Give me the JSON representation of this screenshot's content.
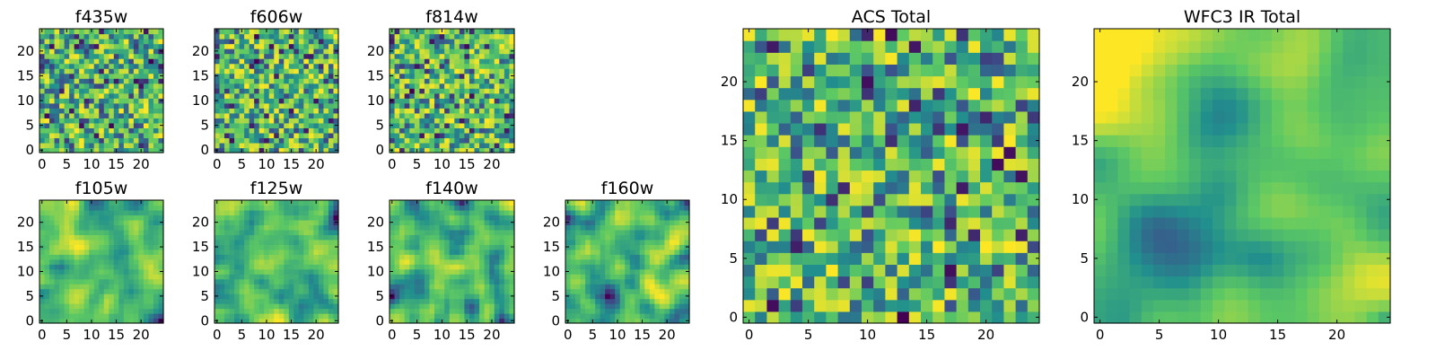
{
  "chart_data": [
    {
      "type": "heatmap",
      "title": "f435w",
      "seed": 11,
      "variant": "noise",
      "grid": 25,
      "xticks": [
        0,
        5,
        10,
        15,
        20
      ],
      "yticks": [
        0,
        5,
        10,
        15,
        20
      ],
      "xlim": [
        0,
        24
      ],
      "ylim": [
        0,
        24
      ]
    },
    {
      "type": "heatmap",
      "title": "f606w",
      "seed": 23,
      "variant": "noise",
      "grid": 25,
      "xticks": [
        0,
        5,
        10,
        15,
        20
      ],
      "yticks": [
        0,
        5,
        10,
        15,
        20
      ],
      "xlim": [
        0,
        24
      ],
      "ylim": [
        0,
        24
      ]
    },
    {
      "type": "heatmap",
      "title": "f814w",
      "seed": 37,
      "variant": "noise",
      "grid": 25,
      "xticks": [
        0,
        5,
        10,
        15,
        20
      ],
      "yticks": [
        0,
        5,
        10,
        15,
        20
      ],
      "xlim": [
        0,
        24
      ],
      "ylim": [
        0,
        24
      ]
    },
    {
      "type": "heatmap",
      "title": "f105w",
      "seed": 41,
      "variant": "smooth",
      "grid": 25,
      "xticks": [
        0,
        5,
        10,
        15,
        20
      ],
      "yticks": [
        0,
        5,
        10,
        15,
        20
      ],
      "xlim": [
        0,
        24
      ],
      "ylim": [
        0,
        24
      ]
    },
    {
      "type": "heatmap",
      "title": "f125w",
      "seed": 53,
      "variant": "smooth",
      "grid": 25,
      "xticks": [
        0,
        5,
        10,
        15,
        20
      ],
      "yticks": [
        0,
        5,
        10,
        15,
        20
      ],
      "xlim": [
        0,
        24
      ],
      "ylim": [
        0,
        24
      ]
    },
    {
      "type": "heatmap",
      "title": "f140w",
      "seed": 67,
      "variant": "smooth",
      "grid": 25,
      "xticks": [
        0,
        5,
        10,
        15,
        20
      ],
      "yticks": [
        0,
        5,
        10,
        15,
        20
      ],
      "xlim": [
        0,
        24
      ],
      "ylim": [
        0,
        24
      ]
    },
    {
      "type": "heatmap",
      "title": "f160w",
      "seed": 79,
      "variant": "smooth",
      "grid": 25,
      "xticks": [
        0,
        5,
        10,
        15,
        20
      ],
      "yticks": [
        0,
        5,
        10,
        15,
        20
      ],
      "xlim": [
        0,
        24
      ],
      "ylim": [
        0,
        24
      ]
    },
    {
      "type": "heatmap",
      "title": "ACS Total",
      "seed": 97,
      "variant": "noise",
      "grid": 25,
      "xticks": [
        0,
        5,
        10,
        15,
        20
      ],
      "yticks": [
        0,
        5,
        10,
        15,
        20
      ],
      "xlim": [
        0,
        24
      ],
      "ylim": [
        0,
        24
      ]
    },
    {
      "type": "heatmap",
      "title": "WFC3 IR Total",
      "seed": 131,
      "variant": "smooth-strong",
      "grid": 25,
      "xticks": [
        0,
        5,
        10,
        15,
        20
      ],
      "yticks": [
        0,
        5,
        10,
        15,
        20
      ],
      "xlim": [
        0,
        24
      ],
      "ylim": [
        0,
        24
      ]
    }
  ],
  "colormap": [
    "#440154",
    "#3b528b",
    "#21908d",
    "#5dc963",
    "#fde725"
  ],
  "grid": false
}
